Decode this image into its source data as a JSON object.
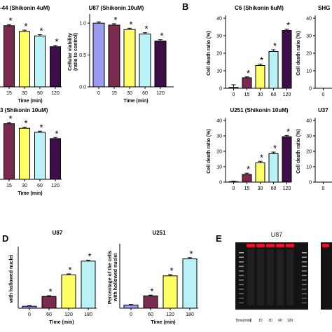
{
  "panel_letters": [
    "B",
    "D",
    "E"
  ],
  "chart_data": [
    {
      "id": "a1",
      "type": "bar",
      "title": "-44 (Shikonin 4uM)",
      "categories": [
        "15",
        "30",
        "60",
        "120"
      ],
      "values": [
        0.96,
        0.87,
        0.8,
        0.63
      ],
      "errors": [
        0.02,
        0.02,
        0.02,
        0.02
      ],
      "colors": [
        "#7a2a4f",
        "#ffff66",
        "#b9f2f7",
        "#3e0e48"
      ],
      "stars": [
        true,
        true,
        true,
        true
      ],
      "xlabel": "Time (min)",
      "ylabel": "",
      "ylim": [
        0,
        1.1
      ],
      "yticks": []
    },
    {
      "id": "a2",
      "type": "bar",
      "title": "U87 (Shikonin 10uM)",
      "categories": [
        "0",
        "15",
        "30",
        "60",
        "120"
      ],
      "values": [
        1.0,
        0.97,
        0.9,
        0.83,
        0.72
      ],
      "errors": [
        0.02,
        0.02,
        0.02,
        0.02,
        0.02
      ],
      "colors": [
        "#9b9bef",
        "#7a2a4f",
        "#ffff66",
        "#b9f2f7",
        "#3e0e48"
      ],
      "stars": [
        false,
        true,
        true,
        true,
        true
      ],
      "xlabel": "Time (min)",
      "ylabel": "Cellular viability\n(ratio to control)",
      "ylim": [
        0,
        1.1
      ],
      "yticks": [
        "0.0",
        "0.5",
        "1.0"
      ]
    },
    {
      "id": "a3",
      "type": "bar",
      "title": "3 (Shikonin 10uM)",
      "categories": [
        "15",
        "30",
        "60",
        "120"
      ],
      "values": [
        0.97,
        0.89,
        0.82,
        0.71
      ],
      "errors": [
        0.02,
        0.02,
        0.02,
        0.02
      ],
      "colors": [
        "#7a2a4f",
        "#ffff66",
        "#b9f2f7",
        "#3e0e48"
      ],
      "stars": [
        true,
        true,
        true,
        true
      ],
      "xlabel": "Time (min)",
      "ylabel": "",
      "ylim": [
        0,
        1.1
      ],
      "yticks": []
    },
    {
      "id": "b1",
      "type": "bar",
      "title": "C6 (Shikonin 6uM)",
      "categories": [
        "0",
        "15",
        "30",
        "60",
        "120"
      ],
      "values": [
        0.5,
        6,
        13,
        21,
        33
      ],
      "errors": [
        1.5,
        0.5,
        0.8,
        1.0,
        0.8
      ],
      "colors": [
        "#9b9bef",
        "#7a2a4f",
        "#ffff66",
        "#b9f2f7",
        "#3e0e48"
      ],
      "stars": [
        false,
        true,
        true,
        true,
        true
      ],
      "xlabel": "",
      "ylabel": "Cell death ratio (%)",
      "ylim": [
        0,
        40
      ],
      "yticks": [
        "0",
        "10",
        "20",
        "30",
        "40"
      ]
    },
    {
      "id": "b2",
      "type": "bar",
      "title": "SHG",
      "categories": [
        "0"
      ],
      "values": [
        0
      ],
      "errors": [
        0
      ],
      "colors": [
        "#9b9bef"
      ],
      "stars": [
        false
      ],
      "xlabel": "",
      "ylabel": "Cell death ratio (%)",
      "ylim": [
        0,
        40
      ],
      "yticks": [
        "0",
        "10",
        "20",
        "30",
        "40"
      ]
    },
    {
      "id": "b3",
      "type": "bar",
      "title": "U251 (Shikonin 10uM)",
      "categories": [
        "0",
        "15",
        "30",
        "60",
        "120"
      ],
      "values": [
        0.3,
        5,
        12.5,
        18.5,
        29.5
      ],
      "errors": [
        0.3,
        0.8,
        1.0,
        1.0,
        0.8
      ],
      "colors": [
        "#9b9bef",
        "#7a2a4f",
        "#ffff66",
        "#b9f2f7",
        "#3e0e48"
      ],
      "stars": [
        false,
        true,
        true,
        true,
        true
      ],
      "xlabel": "",
      "ylabel": "Cell death ratio (%)",
      "ylim": [
        0,
        40
      ],
      "yticks": [
        "0",
        "10",
        "20",
        "30",
        "40"
      ]
    },
    {
      "id": "b4",
      "type": "bar",
      "title": "U37",
      "categories": [
        "0"
      ],
      "values": [
        0
      ],
      "errors": [
        0
      ],
      "colors": [
        "#9b9bef"
      ],
      "stars": [
        false
      ],
      "xlabel": "",
      "ylabel": "Cell death ratio (%)",
      "ylim": [
        0,
        40
      ],
      "yticks": [
        "0",
        "10",
        "20",
        "30",
        "40"
      ]
    },
    {
      "id": "d1",
      "type": "bar",
      "title": "U87",
      "categories": [
        "0",
        "60",
        "120",
        "180"
      ],
      "values": [
        1,
        6,
        17,
        24
      ],
      "errors": [
        0.3,
        0.4,
        0.5,
        0.5
      ],
      "colors": [
        "#9b9bef",
        "#7a2a4f",
        "#ffff66",
        "#b9f2f7"
      ],
      "stars": [
        false,
        true,
        true,
        true
      ],
      "xlabel": "Time (min)",
      "ylabel": "with hollowed nuclei",
      "ylim": [
        0,
        30
      ],
      "yticks": []
    },
    {
      "id": "d2",
      "type": "bar",
      "title": "U251",
      "categories": [
        "0",
        "60",
        "120",
        "180"
      ],
      "values": [
        2,
        8,
        21,
        32
      ],
      "errors": [
        0.4,
        0.5,
        0.8,
        0.8
      ],
      "colors": [
        "#9b9bef",
        "#7a2a4f",
        "#ffff66",
        "#b9f2f7"
      ],
      "stars": [
        false,
        true,
        true,
        true
      ],
      "xlabel": "Time (min)",
      "ylabel": "Percentage of the cells\nwith hollowed nuclei",
      "ylim": [
        0,
        40
      ],
      "yticks": []
    }
  ],
  "gel": {
    "title": "U87",
    "xlabel": "Time(min)",
    "lanes": [
      "0",
      "15",
      "30",
      "60",
      "120"
    ],
    "colors": {
      "background": "#131313",
      "band": "#e8102a"
    }
  }
}
